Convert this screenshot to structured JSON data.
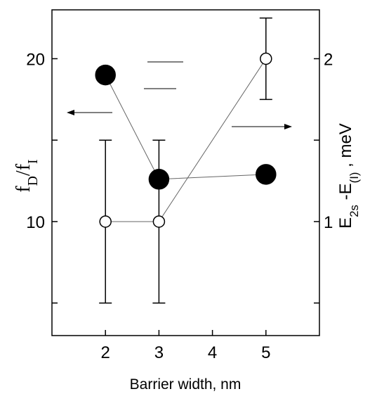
{
  "chart_data": {
    "type": "scatter",
    "x_label": "Barrier width, nm",
    "y_label": [
      {
        "text": "f"
      },
      {
        "text": "D",
        "sub": true
      },
      {
        "text": "/f"
      },
      {
        "text": "I",
        "sub": true
      }
    ],
    "y2_label": [
      {
        "text": "E"
      },
      {
        "text": "2s",
        "sub": true
      },
      {
        "text": " -E"
      },
      {
        "text": "(I)",
        "sub": true
      },
      {
        "text": " , meV"
      }
    ],
    "xlim": [
      1,
      6
    ],
    "xticks": [
      2,
      3,
      4,
      5
    ],
    "ylim": [
      3,
      23
    ],
    "yticks": [
      10,
      20
    ],
    "yminorticks": [
      5,
      15
    ],
    "y2lim": [
      0.3,
      2.3
    ],
    "y2ticks": [
      1,
      2
    ],
    "y2minorticks": [
      0.5,
      1.5
    ],
    "series": [
      {
        "color": "#000000",
        "marker": "filled",
        "x": [
          2,
          3,
          5
        ],
        "values": [
          19.0,
          12.6,
          12.9
        ]
      },
      {
        "color": "#000000",
        "marker": "open",
        "axis": "y2",
        "x": [
          2,
          3,
          5
        ],
        "values": [
          1.0,
          1.0,
          2.0
        ],
        "errors": [
          0.5,
          0.5,
          0.25
        ]
      }
    ]
  }
}
